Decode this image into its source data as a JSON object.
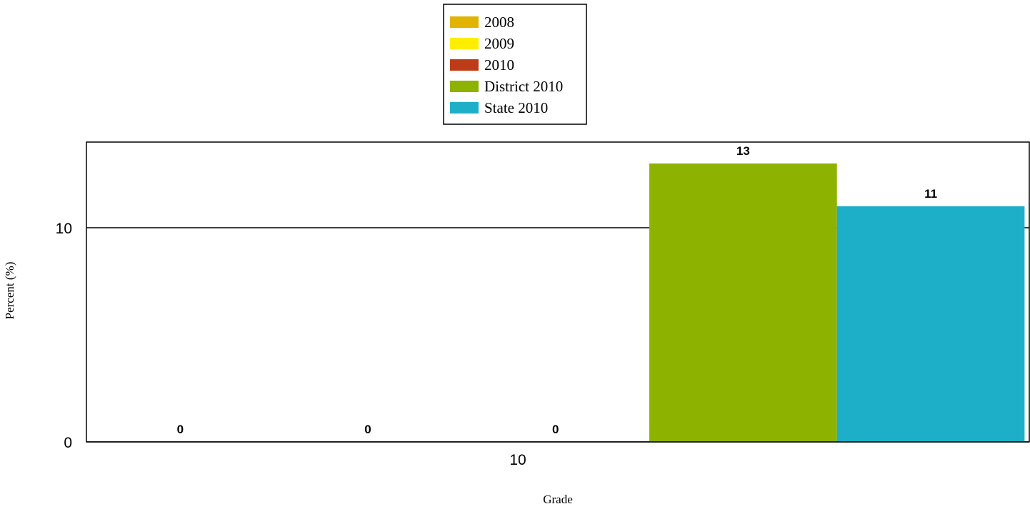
{
  "chart_data": {
    "type": "bar",
    "categories": [
      "10"
    ],
    "series": [
      {
        "name": "2008",
        "values": [
          0
        ],
        "color": "#E0B400"
      },
      {
        "name": "2009",
        "values": [
          0
        ],
        "color": "#FFEE00"
      },
      {
        "name": "2010",
        "values": [
          0
        ],
        "color": "#BE3B17"
      },
      {
        "name": "District 2010",
        "values": [
          13
        ],
        "color": "#8DB200"
      },
      {
        "name": "State 2010",
        "values": [
          11
        ],
        "color": "#1EAFC8"
      }
    ],
    "xlabel": "Grade",
    "ylabel": "Percent (%)",
    "ylim": [
      0,
      14
    ],
    "yticks": [
      0,
      10
    ],
    "grid": true,
    "legend": "top-center"
  }
}
